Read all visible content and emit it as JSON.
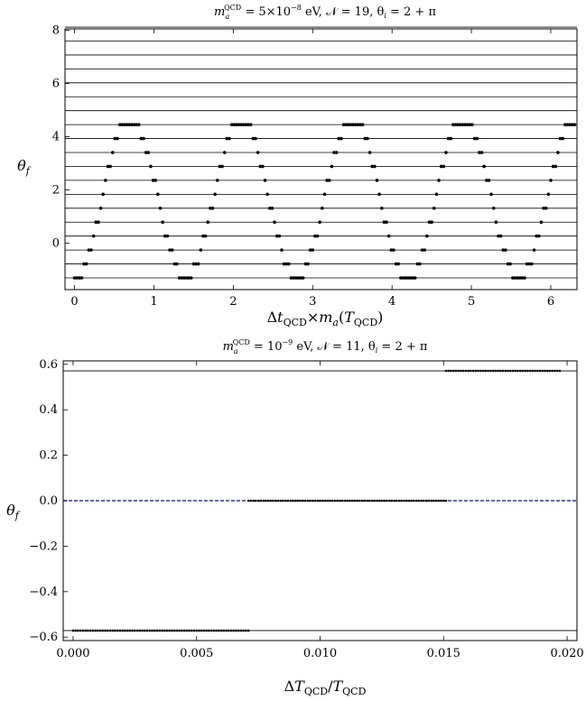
{
  "chart_data": [
    {
      "type": "scatter",
      "title": "m_a^QCD = 5×10^-8 eV, 𝒩 = 19, θ_i = 2 + π",
      "title_parts": {
        "m": "m",
        "a_sub": "a",
        "qcd_sup": "QCD",
        "rest": " = 5×10",
        "exp": "−8",
        "tail": " eV, 𝒩 = 19, θ",
        "i_sub": "i",
        "end": " = 2 + π"
      },
      "xlabel": "Δt_QCD×m_a(T_QCD)",
      "xlabel_parts": {
        "a": "Δ",
        "b": "t",
        "c": "QCD",
        "d": "×",
        "e": "m",
        "f": "a",
        "g": "(",
        "h": "T",
        "i": "QCD",
        "j": ")"
      },
      "ylabel": "θ_f",
      "ylabel_parts": {
        "main": "θ",
        "sub": "f"
      },
      "xlim": [
        -0.12,
        6.33
      ],
      "ylim": [
        -1.75,
        8.05
      ],
      "x_ticks": [
        0,
        1,
        2,
        3,
        4,
        5,
        6
      ],
      "x_tick_labels": [
        "0",
        "1",
        "2",
        "3",
        "4",
        "5",
        "6"
      ],
      "y_ticks": [
        0,
        2,
        4,
        6,
        8
      ],
      "y_tick_labels": [
        "0",
        "2",
        "4",
        "6",
        "8"
      ],
      "vacua_count": 19,
      "vacua_spacing": 0.5236,
      "vacua_start": -1.309,
      "highlighted_vacua": [
        0,
        6.2832
      ],
      "highlight_color": "#2f3a8f",
      "point_color": "#000000",
      "series": [
        {
          "x_start": 0.0,
          "x_step": 0.03,
          "n_points": 211,
          "rule": "nearest vacuum to 3.0*(1 - cos(2*pi*x/1.4)) - 1.3, clipped to [-1.309, 7.592]"
        }
      ]
    },
    {
      "type": "scatter",
      "title": "m_a^QCD = 10^-9 eV, 𝒩 = 11, θ_i = 2 + π",
      "title_parts": {
        "m": "m",
        "a_sub": "a",
        "qcd_sup": "QCD",
        "rest": " = 10",
        "exp": "−9",
        "tail": " eV, 𝒩 = 11, θ",
        "i_sub": "i",
        "end": " = 2 + π"
      },
      "xlabel": "ΔT_QCD/T_QCD",
      "xlabel_parts": {
        "a": "Δ",
        "b": "T",
        "c": "QCD",
        "d": "/",
        "e": "T",
        "f": "QCD"
      },
      "ylabel": "θ_f",
      "ylabel_parts": {
        "main": "θ",
        "sub": "f"
      },
      "xlim": [
        -0.0004,
        0.0204
      ],
      "ylim": [
        -0.615,
        0.615
      ],
      "x_ticks": [
        0.0,
        0.005,
        0.01,
        0.015,
        0.02
      ],
      "x_tick_labels": [
        "0.000",
        "0.005",
        "0.010",
        "0.015",
        "0.020"
      ],
      "y_ticks": [
        -0.6,
        -0.4,
        -0.2,
        0.0,
        0.2,
        0.4,
        0.6
      ],
      "y_tick_labels": [
        "−0.6",
        "−0.4",
        "−0.2",
        "0.0",
        "0.2",
        "0.4",
        "0.6"
      ],
      "vacua": [
        -0.5712,
        0.0,
        0.5712
      ],
      "highlighted_vacua": [
        0.0
      ],
      "highlight_color": "#2f3a8f",
      "point_color": "#000000",
      "series": [
        {
          "x_start": 0.0,
          "x_end": 0.0071,
          "y": -0.5712
        },
        {
          "x_start": 0.0071,
          "x_end": 0.0151,
          "y": 0.0
        },
        {
          "x_start": 0.0151,
          "x_end": 0.0197,
          "y": 0.5712
        }
      ],
      "point_step": 0.0001
    }
  ]
}
